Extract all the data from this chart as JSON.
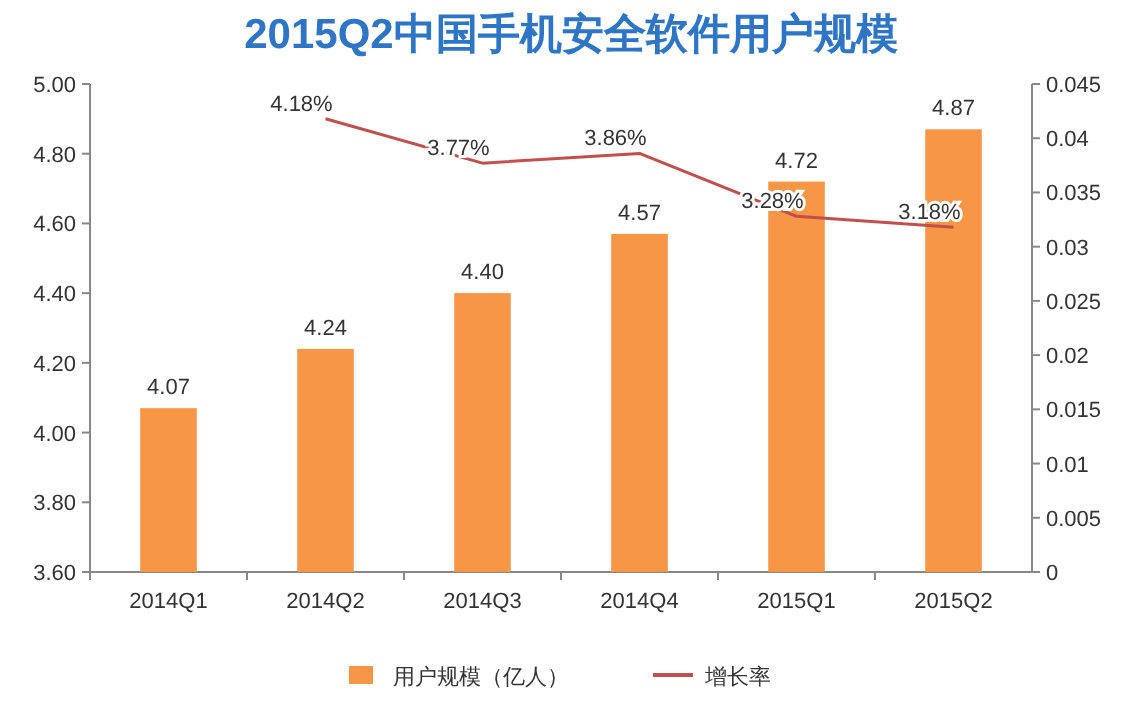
{
  "chart_data": {
    "type": "bar",
    "title": "2015Q2中国手机安全软件用户规模",
    "categories": [
      "2014Q1",
      "2014Q2",
      "2014Q3",
      "2014Q4",
      "2015Q1",
      "2015Q2"
    ],
    "series": [
      {
        "name": "用户规模（亿人）",
        "color": "#f79646",
        "values": [
          4.07,
          4.24,
          4.4,
          4.57,
          4.72,
          4.87
        ],
        "value_labels": [
          "4.07",
          "4.24",
          "4.40",
          "4.57",
          "4.72",
          "4.87"
        ]
      },
      {
        "name": "增长率",
        "type": "line",
        "axis": "y2",
        "color": "#c0504d",
        "values": [
          null,
          0.0418,
          0.0377,
          0.0386,
          0.0328,
          0.0318
        ],
        "value_labels": [
          null,
          "4.18%",
          "3.77%",
          "3.86%",
          "3.28%",
          "3.18%"
        ]
      }
    ],
    "ylim": [
      3.6,
      5.0
    ],
    "yticks": [
      {
        "value": 3.6,
        "label": "3.60"
      },
      {
        "value": 3.8,
        "label": "3.80"
      },
      {
        "value": 4.0,
        "label": "4.00"
      },
      {
        "value": 4.2,
        "label": "4.20"
      },
      {
        "value": 4.4,
        "label": "4.40"
      },
      {
        "value": 4.6,
        "label": "4.60"
      },
      {
        "value": 4.8,
        "label": "4.80"
      },
      {
        "value": 5.0,
        "label": "5.00"
      }
    ],
    "y2lim": [
      0,
      0.045
    ],
    "y2ticks": [
      0,
      0.005,
      0.01,
      0.015,
      0.02,
      0.025,
      0.03,
      0.035,
      0.04,
      0.045
    ],
    "grid": false,
    "legend": "bottom",
    "marker": "none",
    "line_style": "solid"
  }
}
